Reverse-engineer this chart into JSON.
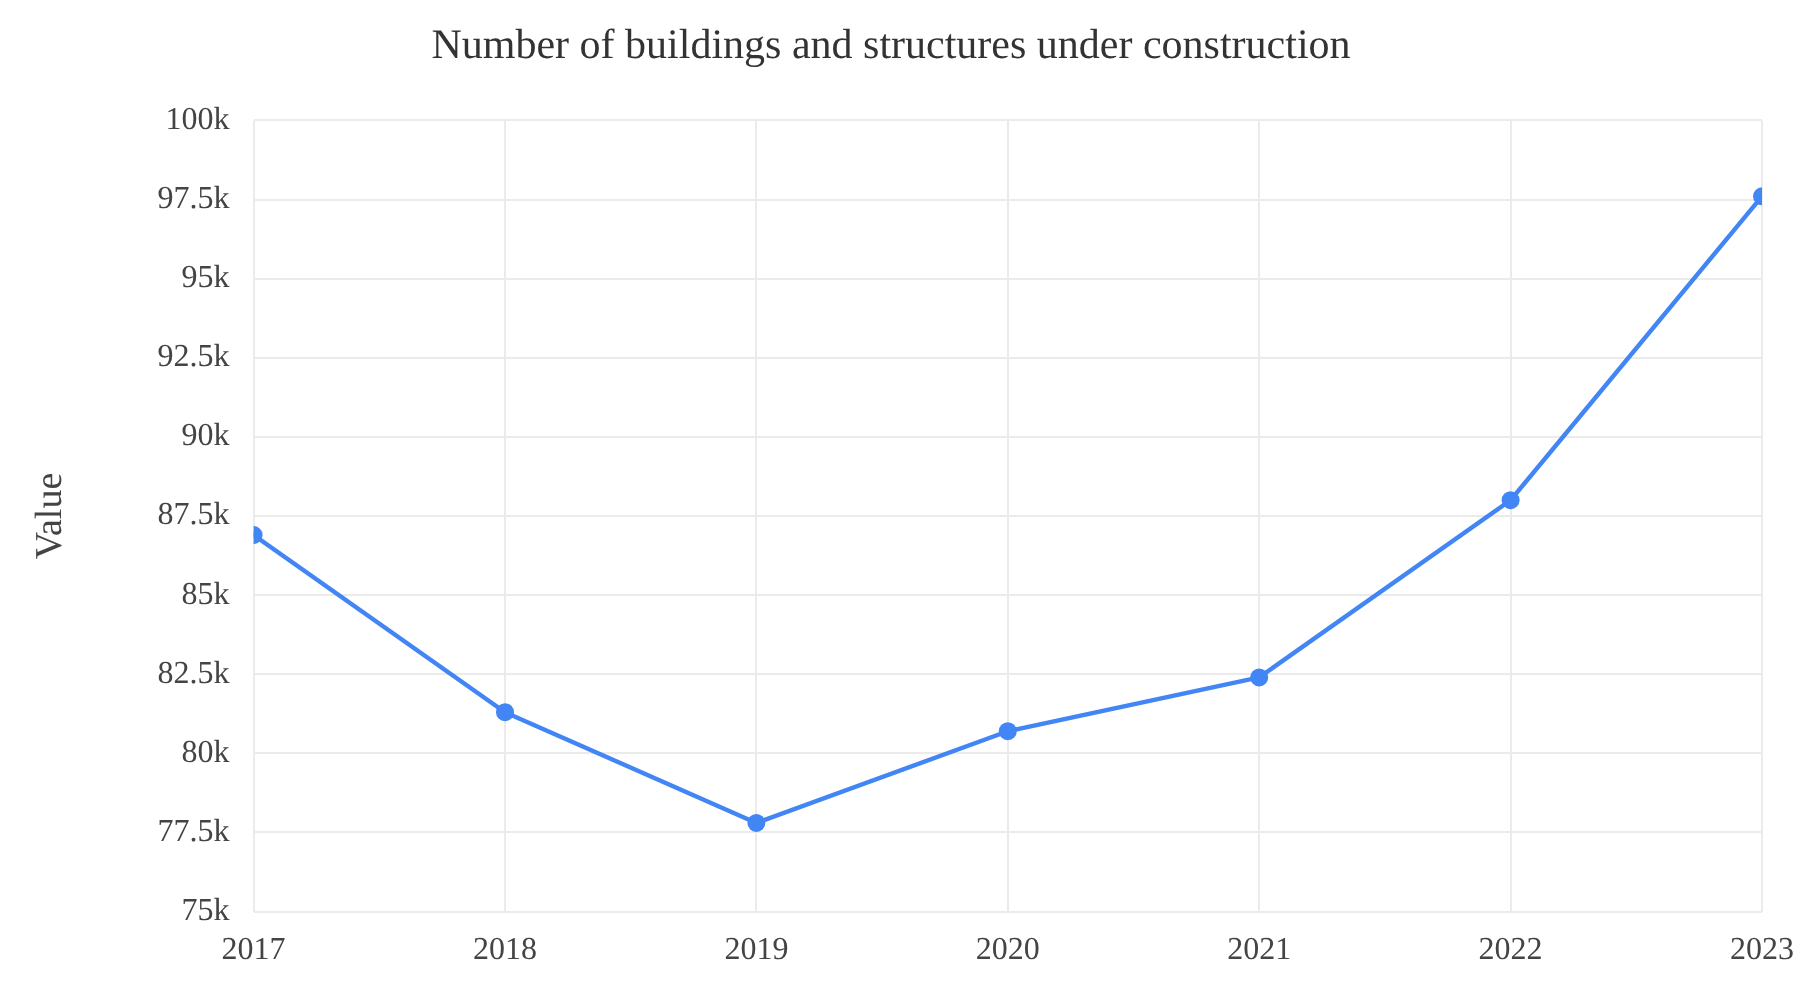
{
  "chart_data": {
    "type": "line",
    "title": "Number of buildings and structures under construction",
    "ylabel": "Value",
    "x": [
      2017,
      2018,
      2019,
      2020,
      2021,
      2022,
      2023
    ],
    "series": [
      {
        "color": "#4285f4",
        "values": [
          86900,
          81300,
          77800,
          80700,
          82400,
          88000,
          97600
        ]
      }
    ],
    "xlim": [
      2017,
      2023
    ],
    "xticks": [
      2017,
      2018,
      2019,
      2020,
      2021,
      2022,
      2023
    ],
    "ylim": [
      75000,
      100000
    ],
    "yticks": [
      {
        "value": 75000,
        "label": "75k"
      },
      {
        "value": 77500,
        "label": "77.5k"
      },
      {
        "value": 80000,
        "label": "80k"
      },
      {
        "value": 82500,
        "label": "82.5k"
      },
      {
        "value": 85000,
        "label": "85k"
      },
      {
        "value": 87500,
        "label": "87.5k"
      },
      {
        "value": 90000,
        "label": "90k"
      },
      {
        "value": 92500,
        "label": "92.5k"
      },
      {
        "value": 95000,
        "label": "95k"
      },
      {
        "value": 97500,
        "label": "97.5k"
      },
      {
        "value": 100000,
        "label": "100k"
      }
    ],
    "grid": true,
    "marker": "circle",
    "line_style": "solid"
  }
}
